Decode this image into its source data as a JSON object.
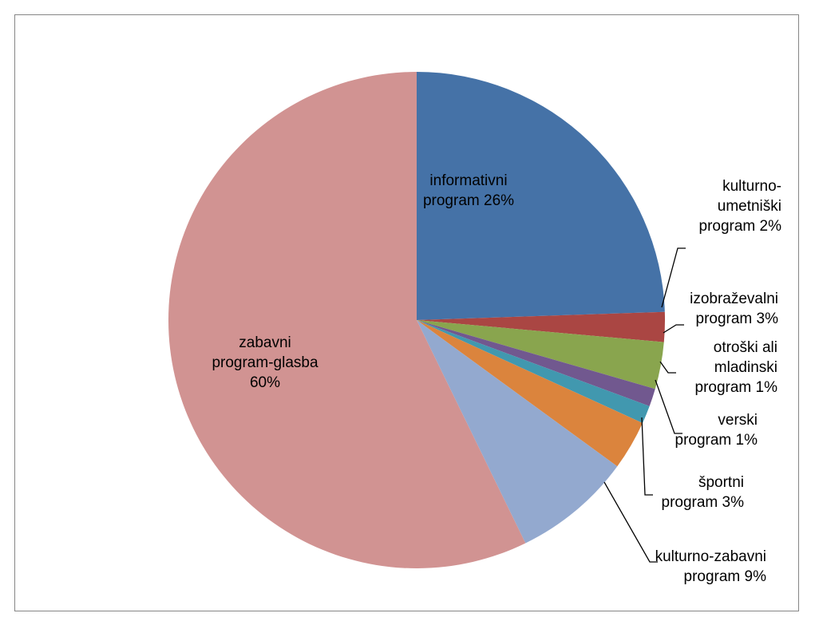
{
  "chart_data": {
    "type": "pie",
    "title": "",
    "slices": [
      {
        "name": "informativni program",
        "label": "informativni program 26%",
        "value": 26,
        "color": "#4572A7"
      },
      {
        "name": "kulturno-umetniški program",
        "label": "kulturno-umetniški program 2%",
        "value": 2,
        "color": "#AA4643"
      },
      {
        "name": "izobraževalni program",
        "label": "izobraževalni program 3%",
        "value": 3,
        "color": "#89A54E"
      },
      {
        "name": "otroški ali mladinski program",
        "label": "otroški ali mladinski program 1%",
        "value": 1,
        "color": "#71588F"
      },
      {
        "name": "verski program",
        "label": "verski program 1%",
        "value": 1,
        "color": "#4198AF"
      },
      {
        "name": "športni program",
        "label": "športni program  3%",
        "value": 3,
        "color": "#DB843D"
      },
      {
        "name": "kulturno-zabavni program",
        "label": "kulturno-zabavni program 9%",
        "value": 9,
        "color": "#93A9CF"
      },
      {
        "name": "zabavni program-glasba",
        "label": "zabavni program-glasba 60%",
        "value": 60,
        "color": "#D19392"
      }
    ],
    "legend": "none",
    "data_labels": "category name and percentage"
  }
}
